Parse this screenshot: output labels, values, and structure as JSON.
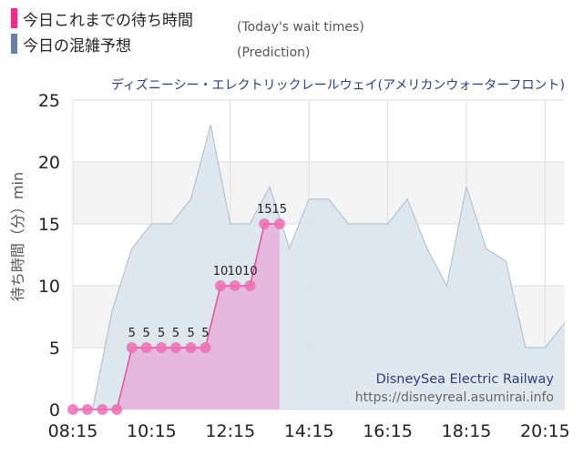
{
  "legend": [
    {
      "label": "今日これまでの待ち時間",
      "sub": "(Today's wait times)",
      "color": "#ec2d8c"
    },
    {
      "label": "今日の混雑予想",
      "sub": "(Prediction)",
      "color": "#6a7fa8"
    }
  ],
  "chart_data": {
    "type": "area",
    "title": "ディズニーシー・エレクトリックレールウェイ(アメリカンウォーターフロント)",
    "ylabel": "待ち時間（分）min",
    "ylim": [
      0,
      25
    ],
    "xlim": [
      "08:15",
      "20:45"
    ],
    "yticks": [
      0,
      5,
      10,
      15,
      20,
      25
    ],
    "xticks": [
      "08:15",
      "10:15",
      "12:15",
      "14:15",
      "16:15",
      "18:15",
      "20:15"
    ],
    "grid": true,
    "series": [
      {
        "color": "#ec2d8c",
        "fill": "#e8a8d8",
        "points": [
          {
            "x": "08:15",
            "y": 0
          },
          {
            "x": "08:37",
            "y": 0
          },
          {
            "x": "09:00",
            "y": 0
          },
          {
            "x": "09:22",
            "y": 0
          },
          {
            "x": "09:45",
            "y": 5
          },
          {
            "x": "10:07",
            "y": 5
          },
          {
            "x": "10:30",
            "y": 5
          },
          {
            "x": "10:52",
            "y": 5
          },
          {
            "x": "11:15",
            "y": 5
          },
          {
            "x": "11:37",
            "y": 5
          },
          {
            "x": "12:00",
            "y": 10
          },
          {
            "x": "12:22",
            "y": 10
          },
          {
            "x": "12:45",
            "y": 10
          },
          {
            "x": "13:07",
            "y": 15
          },
          {
            "x": "13:30",
            "y": 15
          }
        ],
        "labels": [
          "",
          "",
          "",
          "",
          "5",
          "5",
          "5",
          "5",
          "5",
          "5",
          "10",
          "10",
          "10",
          "15",
          "15"
        ]
      },
      {
        "color": "#b0c4d4",
        "fill": "#d9e4ec",
        "points": [
          {
            "x": "08:15",
            "y": 0
          },
          {
            "x": "08:45",
            "y": 0
          },
          {
            "x": "09:15",
            "y": 8
          },
          {
            "x": "09:45",
            "y": 13
          },
          {
            "x": "10:15",
            "y": 15
          },
          {
            "x": "10:45",
            "y": 15
          },
          {
            "x": "11:15",
            "y": 17
          },
          {
            "x": "11:45",
            "y": 23
          },
          {
            "x": "12:15",
            "y": 15
          },
          {
            "x": "12:45",
            "y": 15
          },
          {
            "x": "13:15",
            "y": 18
          },
          {
            "x": "13:45",
            "y": 13
          },
          {
            "x": "14:15",
            "y": 17
          },
          {
            "x": "14:45",
            "y": 17
          },
          {
            "x": "15:15",
            "y": 15
          },
          {
            "x": "15:45",
            "y": 15
          },
          {
            "x": "16:15",
            "y": 15
          },
          {
            "x": "16:45",
            "y": 17
          },
          {
            "x": "17:15",
            "y": 13
          },
          {
            "x": "17:45",
            "y": 10
          },
          {
            "x": "18:15",
            "y": 18
          },
          {
            "x": "18:45",
            "y": 13
          },
          {
            "x": "19:15",
            "y": 12
          },
          {
            "x": "19:45",
            "y": 5
          },
          {
            "x": "20:15",
            "y": 5
          },
          {
            "x": "20:45",
            "y": 7
          }
        ]
      }
    ]
  },
  "watermark": {
    "name": "DisneySea Electric Railway",
    "url": "https://disneyreal.asumirai.info"
  }
}
